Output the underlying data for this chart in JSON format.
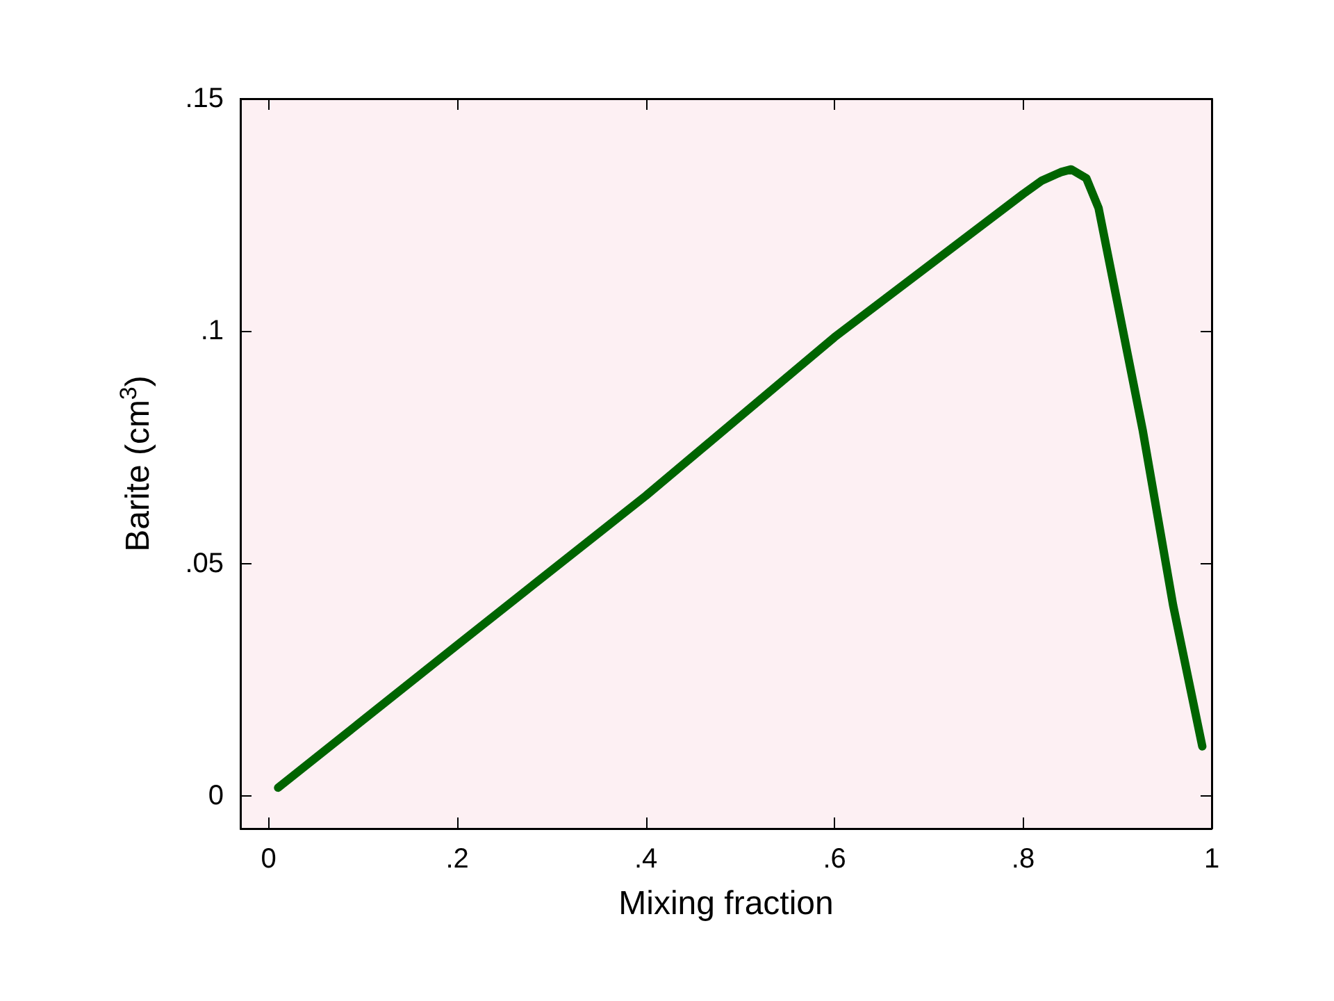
{
  "chart_data": {
    "type": "line",
    "xlabel": "Mixing fraction",
    "ylabel": "Barite (cm$^{3}$)",
    "xlim": [
      -0.03,
      1
    ],
    "ylim": [
      -0.007,
      0.15
    ],
    "xticks": [
      {
        "value": 0,
        "label": "0"
      },
      {
        "value": 0.2,
        "label": ".2"
      },
      {
        "value": 0.4,
        "label": ".4"
      },
      {
        "value": 0.6,
        "label": ".6"
      },
      {
        "value": 0.8,
        "label": ".8"
      },
      {
        "value": 1,
        "label": "1"
      }
    ],
    "yticks": [
      {
        "value": 0,
        "label": "0"
      },
      {
        "value": 0.05,
        "label": ".05"
      },
      {
        "value": 0.1,
        "label": ".1"
      },
      {
        "value": 0.15,
        "label": ".15"
      }
    ],
    "grid": false,
    "marker": "none",
    "line_style": "solid",
    "series": [
      {
        "color": "#006400",
        "x": [
          0.01,
          0.2,
          0.4,
          0.6,
          0.8,
          0.82,
          0.84,
          0.851,
          0.867,
          0.88,
          0.901,
          0.927,
          0.959,
          0.99
        ],
        "values": [
          0.0018,
          0.0325,
          0.0646,
          0.0987,
          0.1295,
          0.1324,
          0.1342,
          0.1348,
          0.1329,
          0.1265,
          0.1051,
          0.0785,
          0.0411,
          0.0107
        ]
      }
    ]
  }
}
